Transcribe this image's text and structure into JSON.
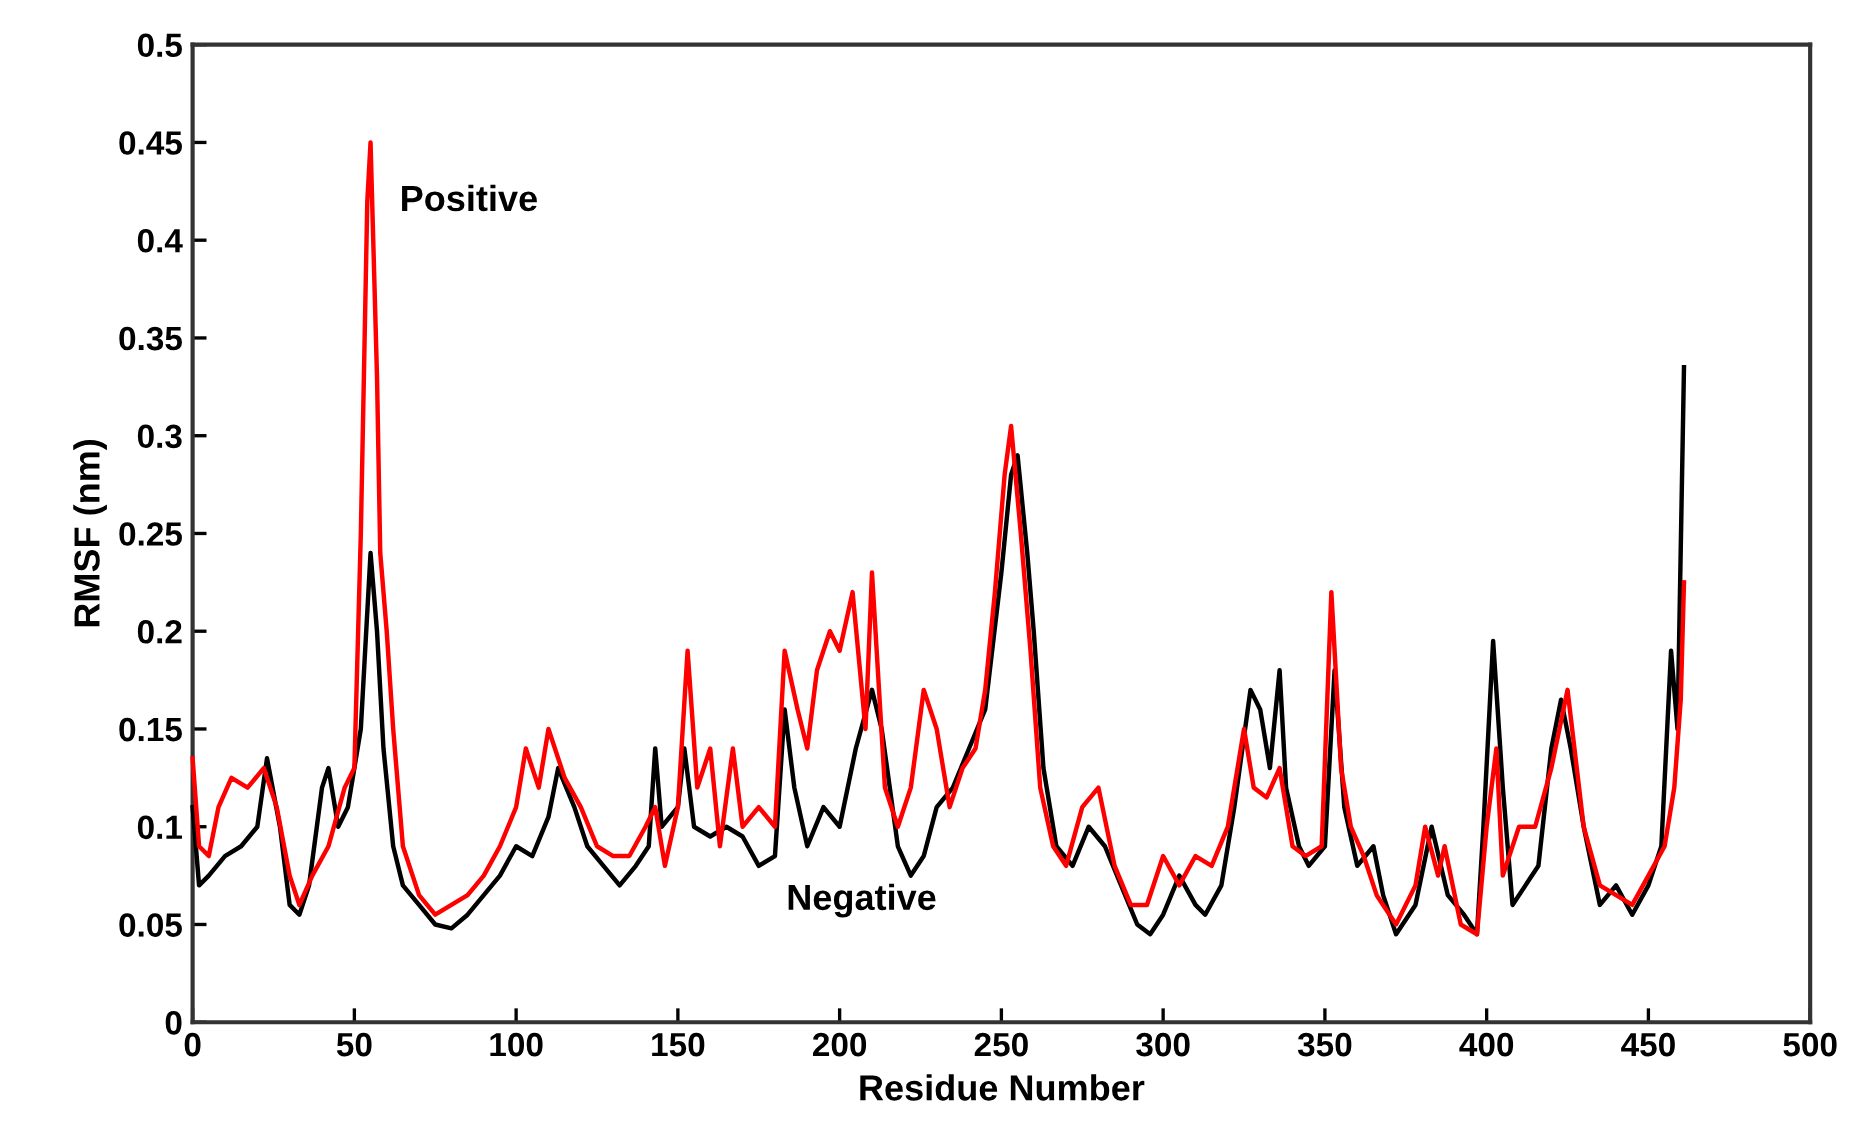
{
  "chart_data": {
    "type": "line",
    "xlabel": "Residue Number",
    "ylabel": "RMSF (nm)",
    "xlim": [
      0,
      500
    ],
    "xticks": [
      0,
      50,
      100,
      150,
      200,
      250,
      300,
      350,
      400,
      450,
      500
    ],
    "ylim": [
      0,
      0.5
    ],
    "yticks": [
      0,
      0.05,
      0.1,
      0.15,
      0.2,
      0.25,
      0.3,
      0.35,
      0.4,
      0.45,
      0.5
    ],
    "grid": false,
    "legend": false,
    "marker": "none",
    "line_style": "solid",
    "series": [
      {
        "name": "Negative",
        "color": "#000000",
        "x": [
          0,
          2,
          5,
          10,
          15,
          20,
          23,
          27,
          30,
          33,
          36,
          40,
          42,
          45,
          48,
          52,
          55,
          57,
          59,
          62,
          65,
          70,
          75,
          80,
          85,
          90,
          95,
          100,
          105,
          110,
          113,
          118,
          122,
          127,
          132,
          137,
          141,
          143,
          145,
          150,
          152,
          155,
          160,
          165,
          170,
          175,
          180,
          183,
          186,
          190,
          195,
          200,
          205,
          210,
          213,
          218,
          222,
          226,
          230,
          235,
          240,
          245,
          250,
          253,
          255,
          258,
          260,
          263,
          267,
          272,
          277,
          282,
          287,
          292,
          296,
          300,
          305,
          310,
          313,
          318,
          322,
          327,
          330,
          333,
          336,
          338,
          342,
          345,
          350,
          353,
          356,
          360,
          365,
          368,
          372,
          378,
          383,
          388,
          393,
          397,
          399,
          402,
          405,
          408,
          412,
          416,
          420,
          423,
          426,
          430,
          435,
          440,
          445,
          450,
          454,
          457,
          459,
          461
        ],
        "values": [
          0.11,
          0.07,
          0.075,
          0.085,
          0.09,
          0.1,
          0.135,
          0.1,
          0.06,
          0.055,
          0.07,
          0.12,
          0.13,
          0.1,
          0.11,
          0.15,
          0.24,
          0.2,
          0.14,
          0.09,
          0.07,
          0.06,
          0.05,
          0.048,
          0.055,
          0.065,
          0.075,
          0.09,
          0.085,
          0.105,
          0.13,
          0.11,
          0.09,
          0.08,
          0.07,
          0.08,
          0.09,
          0.14,
          0.1,
          0.11,
          0.14,
          0.1,
          0.095,
          0.1,
          0.095,
          0.08,
          0.085,
          0.16,
          0.12,
          0.09,
          0.11,
          0.1,
          0.14,
          0.17,
          0.15,
          0.09,
          0.075,
          0.085,
          0.11,
          0.12,
          0.14,
          0.16,
          0.23,
          0.28,
          0.29,
          0.24,
          0.2,
          0.13,
          0.09,
          0.08,
          0.1,
          0.09,
          0.07,
          0.05,
          0.045,
          0.055,
          0.075,
          0.06,
          0.055,
          0.07,
          0.11,
          0.17,
          0.16,
          0.13,
          0.18,
          0.12,
          0.09,
          0.08,
          0.09,
          0.18,
          0.11,
          0.08,
          0.09,
          0.065,
          0.045,
          0.06,
          0.1,
          0.065,
          0.055,
          0.045,
          0.1,
          0.195,
          0.12,
          0.06,
          0.07,
          0.08,
          0.14,
          0.165,
          0.14,
          0.1,
          0.06,
          0.07,
          0.055,
          0.07,
          0.09,
          0.19,
          0.15,
          0.335
        ]
      },
      {
        "name": "Positive",
        "color": "#ff0000",
        "x": [
          0,
          2,
          5,
          8,
          12,
          17,
          22,
          26,
          30,
          33,
          37,
          42,
          47,
          50,
          52,
          54,
          55,
          57,
          58,
          60,
          62,
          65,
          70,
          75,
          80,
          85,
          90,
          95,
          100,
          103,
          107,
          110,
          115,
          120,
          125,
          130,
          135,
          140,
          143,
          146,
          150,
          153,
          156,
          160,
          163,
          167,
          170,
          175,
          180,
          183,
          187,
          190,
          193,
          197,
          200,
          204,
          208,
          210,
          214,
          218,
          222,
          226,
          230,
          234,
          238,
          242,
          245,
          248,
          251,
          253,
          256,
          259,
          262,
          266,
          270,
          275,
          280,
          285,
          290,
          295,
          300,
          305,
          310,
          315,
          320,
          325,
          328,
          332,
          336,
          340,
          344,
          349,
          352,
          355,
          358,
          362,
          366,
          372,
          378,
          381,
          385,
          387,
          392,
          397,
          400,
          403,
          405,
          410,
          415,
          420,
          425,
          430,
          435,
          440,
          445,
          450,
          455,
          458,
          460,
          461
        ],
        "values": [
          0.135,
          0.09,
          0.085,
          0.11,
          0.125,
          0.12,
          0.13,
          0.11,
          0.075,
          0.06,
          0.075,
          0.09,
          0.12,
          0.13,
          0.25,
          0.42,
          0.45,
          0.33,
          0.24,
          0.2,
          0.15,
          0.09,
          0.065,
          0.055,
          0.06,
          0.065,
          0.075,
          0.09,
          0.11,
          0.14,
          0.12,
          0.15,
          0.125,
          0.11,
          0.09,
          0.085,
          0.085,
          0.1,
          0.11,
          0.08,
          0.11,
          0.19,
          0.12,
          0.14,
          0.09,
          0.14,
          0.1,
          0.11,
          0.1,
          0.19,
          0.16,
          0.14,
          0.18,
          0.2,
          0.19,
          0.22,
          0.15,
          0.23,
          0.12,
          0.1,
          0.12,
          0.17,
          0.15,
          0.11,
          0.13,
          0.14,
          0.17,
          0.22,
          0.28,
          0.305,
          0.25,
          0.19,
          0.12,
          0.09,
          0.08,
          0.11,
          0.12,
          0.08,
          0.06,
          0.06,
          0.085,
          0.07,
          0.085,
          0.08,
          0.1,
          0.15,
          0.12,
          0.115,
          0.13,
          0.09,
          0.085,
          0.09,
          0.22,
          0.13,
          0.1,
          0.085,
          0.065,
          0.05,
          0.07,
          0.1,
          0.075,
          0.09,
          0.05,
          0.045,
          0.1,
          0.14,
          0.075,
          0.1,
          0.1,
          0.13,
          0.17,
          0.1,
          0.07,
          0.065,
          0.06,
          0.075,
          0.09,
          0.12,
          0.165,
          0.225
        ]
      }
    ]
  }
}
